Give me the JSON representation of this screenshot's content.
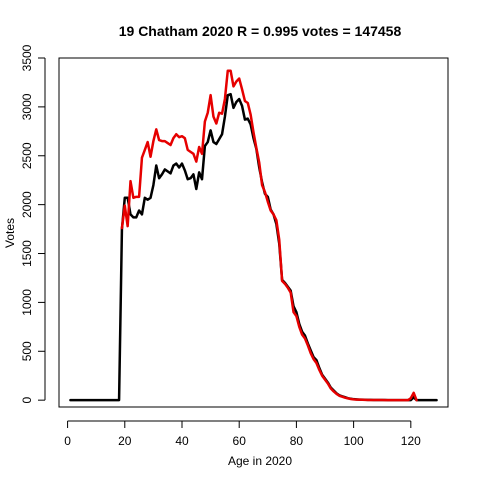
{
  "chart_data": {
    "type": "line",
    "title": "19 Chatham 2020 R = 0.995 votes = 147458",
    "xlabel": "Age in 2020",
    "ylabel": "Votes",
    "xlim": [
      -3,
      133
    ],
    "ylim": [
      -70,
      3500
    ],
    "xticks": [
      0,
      20,
      40,
      60,
      80,
      100,
      120
    ],
    "yticks": [
      0,
      500,
      1000,
      1500,
      2000,
      2500,
      3000,
      3500
    ],
    "grid": false,
    "legend": "none",
    "series": [
      {
        "color": "#000000",
        "points": [
          [
            1,
            0
          ],
          [
            2,
            0
          ],
          [
            3,
            0
          ],
          [
            4,
            0
          ],
          [
            5,
            0
          ],
          [
            6,
            0
          ],
          [
            7,
            0
          ],
          [
            8,
            0
          ],
          [
            9,
            0
          ],
          [
            10,
            0
          ],
          [
            11,
            0
          ],
          [
            12,
            0
          ],
          [
            13,
            0
          ],
          [
            14,
            0
          ],
          [
            15,
            0
          ],
          [
            16,
            0
          ],
          [
            17,
            0
          ],
          [
            18,
            0
          ],
          [
            19,
            1750
          ],
          [
            20,
            2070
          ],
          [
            21,
            2070
          ],
          [
            22,
            1900
          ],
          [
            23,
            1870
          ],
          [
            24,
            1870
          ],
          [
            25,
            1940
          ],
          [
            26,
            1900
          ],
          [
            27,
            2070
          ],
          [
            28,
            2050
          ],
          [
            29,
            2070
          ],
          [
            30,
            2200
          ],
          [
            31,
            2400
          ],
          [
            32,
            2270
          ],
          [
            33,
            2310
          ],
          [
            34,
            2360
          ],
          [
            35,
            2340
          ],
          [
            36,
            2320
          ],
          [
            37,
            2400
          ],
          [
            38,
            2420
          ],
          [
            39,
            2380
          ],
          [
            40,
            2420
          ],
          [
            41,
            2350
          ],
          [
            42,
            2260
          ],
          [
            43,
            2270
          ],
          [
            44,
            2310
          ],
          [
            45,
            2160
          ],
          [
            46,
            2330
          ],
          [
            47,
            2260
          ],
          [
            48,
            2600
          ],
          [
            49,
            2640
          ],
          [
            50,
            2760
          ],
          [
            51,
            2640
          ],
          [
            52,
            2620
          ],
          [
            53,
            2670
          ],
          [
            54,
            2720
          ],
          [
            55,
            2900
          ],
          [
            56,
            3120
          ],
          [
            57,
            3130
          ],
          [
            58,
            2990
          ],
          [
            59,
            3050
          ],
          [
            60,
            3080
          ],
          [
            61,
            3010
          ],
          [
            62,
            2870
          ],
          [
            63,
            2880
          ],
          [
            64,
            2820
          ],
          [
            65,
            2680
          ],
          [
            66,
            2570
          ],
          [
            67,
            2380
          ],
          [
            68,
            2230
          ],
          [
            69,
            2110
          ],
          [
            70,
            2080
          ],
          [
            71,
            1950
          ],
          [
            72,
            1900
          ],
          [
            73,
            1800
          ],
          [
            74,
            1600
          ],
          [
            75,
            1230
          ],
          [
            76,
            1200
          ],
          [
            77,
            1160
          ],
          [
            78,
            1120
          ],
          [
            79,
            960
          ],
          [
            80,
            900
          ],
          [
            81,
            780
          ],
          [
            82,
            700
          ],
          [
            83,
            660
          ],
          [
            84,
            580
          ],
          [
            85,
            510
          ],
          [
            86,
            440
          ],
          [
            87,
            410
          ],
          [
            88,
            330
          ],
          [
            89,
            260
          ],
          [
            90,
            220
          ],
          [
            91,
            180
          ],
          [
            92,
            130
          ],
          [
            93,
            100
          ],
          [
            94,
            70
          ],
          [
            95,
            50
          ],
          [
            96,
            40
          ],
          [
            97,
            30
          ],
          [
            98,
            20
          ],
          [
            99,
            15
          ],
          [
            100,
            10
          ],
          [
            101,
            8
          ],
          [
            102,
            6
          ],
          [
            103,
            5
          ],
          [
            104,
            4
          ],
          [
            105,
            3
          ],
          [
            106,
            3
          ],
          [
            107,
            2
          ],
          [
            108,
            2
          ],
          [
            109,
            1
          ],
          [
            110,
            1
          ],
          [
            111,
            1
          ],
          [
            112,
            0
          ],
          [
            113,
            0
          ],
          [
            114,
            0
          ],
          [
            115,
            0
          ],
          [
            116,
            0
          ],
          [
            117,
            0
          ],
          [
            118,
            0
          ],
          [
            119,
            0
          ],
          [
            120,
            0
          ],
          [
            121,
            30
          ],
          [
            122,
            0
          ],
          [
            123,
            0
          ],
          [
            124,
            0
          ],
          [
            125,
            0
          ],
          [
            126,
            0
          ],
          [
            127,
            0
          ],
          [
            128,
            0
          ],
          [
            129,
            0
          ]
        ]
      },
      {
        "color": "#e60000",
        "points": [
          [
            19,
            1760
          ],
          [
            20,
            1990
          ],
          [
            21,
            1780
          ],
          [
            22,
            2240
          ],
          [
            23,
            2070
          ],
          [
            24,
            2080
          ],
          [
            25,
            2080
          ],
          [
            26,
            2480
          ],
          [
            27,
            2560
          ],
          [
            28,
            2640
          ],
          [
            29,
            2490
          ],
          [
            30,
            2650
          ],
          [
            31,
            2770
          ],
          [
            32,
            2660
          ],
          [
            33,
            2650
          ],
          [
            34,
            2650
          ],
          [
            35,
            2630
          ],
          [
            36,
            2610
          ],
          [
            37,
            2680
          ],
          [
            38,
            2720
          ],
          [
            39,
            2690
          ],
          [
            40,
            2700
          ],
          [
            41,
            2680
          ],
          [
            42,
            2560
          ],
          [
            43,
            2540
          ],
          [
            44,
            2520
          ],
          [
            45,
            2440
          ],
          [
            46,
            2590
          ],
          [
            47,
            2520
          ],
          [
            48,
            2850
          ],
          [
            49,
            2940
          ],
          [
            50,
            3120
          ],
          [
            51,
            2900
          ],
          [
            52,
            2830
          ],
          [
            53,
            2940
          ],
          [
            54,
            2930
          ],
          [
            55,
            3080
          ],
          [
            56,
            3370
          ],
          [
            57,
            3370
          ],
          [
            58,
            3210
          ],
          [
            59,
            3260
          ],
          [
            60,
            3290
          ],
          [
            61,
            3180
          ],
          [
            62,
            3060
          ],
          [
            63,
            3040
          ],
          [
            64,
            2920
          ],
          [
            65,
            2740
          ],
          [
            66,
            2580
          ],
          [
            67,
            2430
          ],
          [
            68,
            2200
          ],
          [
            69,
            2130
          ],
          [
            70,
            2030
          ],
          [
            71,
            1940
          ],
          [
            72,
            1900
          ],
          [
            73,
            1840
          ],
          [
            74,
            1640
          ],
          [
            75,
            1220
          ],
          [
            76,
            1190
          ],
          [
            77,
            1150
          ],
          [
            78,
            1100
          ],
          [
            79,
            900
          ],
          [
            80,
            860
          ],
          [
            81,
            750
          ],
          [
            82,
            670
          ],
          [
            83,
            630
          ],
          [
            84,
            560
          ],
          [
            85,
            480
          ],
          [
            86,
            420
          ],
          [
            87,
            380
          ],
          [
            88,
            310
          ],
          [
            89,
            250
          ],
          [
            90,
            210
          ],
          [
            91,
            170
          ],
          [
            92,
            120
          ],
          [
            93,
            90
          ],
          [
            94,
            65
          ],
          [
            95,
            45
          ],
          [
            96,
            35
          ],
          [
            97,
            25
          ],
          [
            98,
            18
          ],
          [
            99,
            12
          ],
          [
            100,
            8
          ],
          [
            101,
            6
          ],
          [
            102,
            5
          ],
          [
            103,
            4
          ],
          [
            104,
            3
          ],
          [
            105,
            2
          ],
          [
            106,
            2
          ],
          [
            107,
            1
          ],
          [
            108,
            1
          ],
          [
            109,
            1
          ],
          [
            110,
            1
          ],
          [
            111,
            0
          ],
          [
            112,
            0
          ],
          [
            119,
            0
          ],
          [
            120,
            20
          ],
          [
            121,
            75
          ],
          [
            122,
            0
          ]
        ]
      }
    ]
  }
}
